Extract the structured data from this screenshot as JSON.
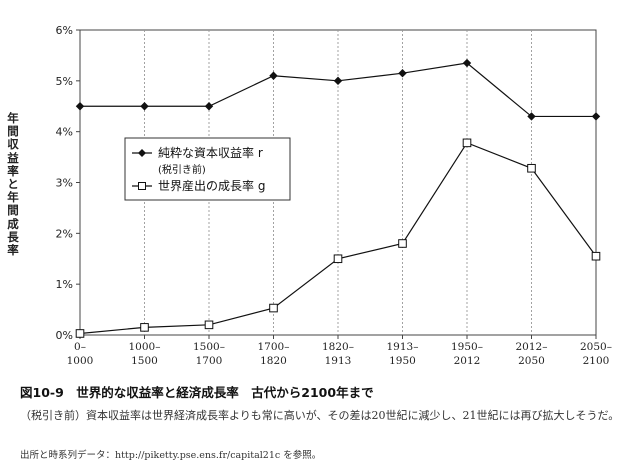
{
  "chart_data": {
    "type": "line",
    "categories": [
      "0–\n1000",
      "1000–\n1500",
      "1500–\n1700",
      "1700–\n1820",
      "1820–\n1913",
      "1913–\n1950",
      "1950–\n2012",
      "2012–\n2050",
      "2050–\n2100"
    ],
    "series": [
      {
        "name": "純粋な資本収益率 r\n(税引き前)",
        "marker": "diamond-filled",
        "color": "#111111",
        "values": [
          4.5,
          4.5,
          4.5,
          5.1,
          5.0,
          5.15,
          5.35,
          4.3,
          4.3
        ]
      },
      {
        "name": "世界産出の成長率 g",
        "marker": "square-open",
        "color": "#111111",
        "values": [
          0.03,
          0.15,
          0.2,
          0.53,
          1.5,
          1.8,
          3.78,
          3.28,
          1.55
        ]
      }
    ],
    "yticks": [
      "0%",
      "1%",
      "2%",
      "3%",
      "4%",
      "5%",
      "6%"
    ],
    "ylim": [
      0,
      6
    ],
    "ylabel": "年間収益率と年間成長率",
    "xlabel": "",
    "grid": "vertical-dotted",
    "legend": "upper-left"
  },
  "caption": "図10-9　世界的な収益率と経済成長率　古代から2100年まで",
  "note": "（税引き前）資本収益率は世界経済成長率よりも常に高いが、その差は20世紀に減少し、21世紀には再び拡大しそうだ。",
  "source": "出所と時系列データ：http://piketty.pse.ens.fr/capital21c を参照。"
}
